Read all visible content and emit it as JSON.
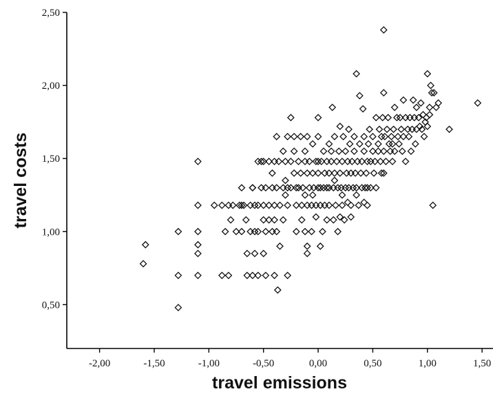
{
  "chart_data": {
    "type": "scatter",
    "title": "",
    "xlabel": "travel emissions",
    "ylabel": "travel costs",
    "xlim": [
      -2.3,
      1.6
    ],
    "ylim": [
      0.2,
      2.5
    ],
    "x_ticks": [
      -2.0,
      -1.5,
      -1.0,
      -0.5,
      0.0,
      0.5,
      1.0,
      1.5
    ],
    "x_tick_labels": [
      "-2,00",
      "-1,50",
      "-1,00",
      "-0,50",
      "0,00",
      "0,50",
      "1,00",
      "1,50"
    ],
    "y_ticks": [
      0.5,
      1.0,
      1.5,
      2.0,
      2.5
    ],
    "y_tick_labels": [
      "0,50",
      "1,00",
      "1,50",
      "2,00",
      "2,50"
    ],
    "grid": false,
    "marker": "diamond-outline",
    "points": [
      [
        -1.58,
        0.91
      ],
      [
        -1.6,
        0.78
      ],
      [
        -1.28,
        1.0
      ],
      [
        -1.28,
        0.7
      ],
      [
        -1.28,
        0.48
      ],
      [
        -1.1,
        1.48
      ],
      [
        -1.1,
        1.18
      ],
      [
        -1.1,
        1.0
      ],
      [
        -1.1,
        0.91
      ],
      [
        -1.1,
        0.85
      ],
      [
        -1.1,
        0.7
      ],
      [
        -0.95,
        1.18
      ],
      [
        -0.88,
        1.18
      ],
      [
        -0.85,
        1.0
      ],
      [
        -0.88,
        0.7
      ],
      [
        -0.82,
        0.7
      ],
      [
        -0.82,
        1.18
      ],
      [
        -0.8,
        1.08
      ],
      [
        -0.78,
        1.18
      ],
      [
        -0.75,
        1.0
      ],
      [
        -0.72,
        1.18
      ],
      [
        -0.7,
        1.3
      ],
      [
        -0.7,
        1.0
      ],
      [
        -0.68,
        1.18
      ],
      [
        -0.66,
        1.08
      ],
      [
        -0.65,
        0.85
      ],
      [
        -0.65,
        0.7
      ],
      [
        -0.62,
        1.18
      ],
      [
        -0.62,
        1.0
      ],
      [
        -0.6,
        1.3
      ],
      [
        -0.6,
        0.7
      ],
      [
        -0.58,
        1.18
      ],
      [
        -0.58,
        1.0
      ],
      [
        -0.58,
        0.85
      ],
      [
        -0.55,
        1.48
      ],
      [
        -0.55,
        1.18
      ],
      [
        -0.55,
        1.0
      ],
      [
        -0.55,
        0.7
      ],
      [
        -0.52,
        1.3
      ],
      [
        -0.52,
        1.48
      ],
      [
        -0.5,
        1.18
      ],
      [
        -0.5,
        1.08
      ],
      [
        -0.5,
        0.85
      ],
      [
        -0.5,
        1.48
      ],
      [
        -0.48,
        1.3
      ],
      [
        -0.48,
        1.0
      ],
      [
        -0.48,
        0.7
      ],
      [
        -0.45,
        1.48
      ],
      [
        -0.45,
        1.18
      ],
      [
        -0.45,
        1.08
      ],
      [
        -0.42,
        1.4
      ],
      [
        -0.42,
        1.3
      ],
      [
        -0.42,
        1.0
      ],
      [
        -0.4,
        1.48
      ],
      [
        -0.4,
        1.18
      ],
      [
        -0.4,
        1.08
      ],
      [
        -0.4,
        0.7
      ],
      [
        -0.38,
        1.65
      ],
      [
        -0.38,
        1.3
      ],
      [
        -0.38,
        1.0
      ],
      [
        -0.37,
        0.6
      ],
      [
        -0.36,
        1.48
      ],
      [
        -0.35,
        1.18
      ],
      [
        -0.35,
        0.9
      ],
      [
        -0.32,
        1.55
      ],
      [
        -0.32,
        1.3
      ],
      [
        -0.32,
        1.08
      ],
      [
        -0.3,
        1.48
      ],
      [
        -0.3,
        1.35
      ],
      [
        -0.28,
        1.65
      ],
      [
        -0.28,
        1.3
      ],
      [
        -0.28,
        1.18
      ],
      [
        -0.28,
        0.7
      ],
      [
        -0.25,
        1.78
      ],
      [
        -0.25,
        1.48
      ],
      [
        -0.25,
        1.3
      ],
      [
        -0.22,
        1.65
      ],
      [
        -0.22,
        1.55
      ],
      [
        -0.22,
        1.4
      ],
      [
        -0.2,
        1.3
      ],
      [
        -0.2,
        1.18
      ],
      [
        -0.2,
        1.0
      ],
      [
        -0.18,
        1.48
      ],
      [
        -0.18,
        1.3
      ],
      [
        -0.16,
        1.65
      ],
      [
        -0.16,
        1.4
      ],
      [
        -0.15,
        1.18
      ],
      [
        -0.15,
        1.08
      ],
      [
        -0.14,
        1.3
      ],
      [
        -0.12,
        1.48
      ],
      [
        -0.12,
        1.55
      ],
      [
        -0.12,
        1.0
      ],
      [
        -0.1,
        1.65
      ],
      [
        -0.1,
        1.4
      ],
      [
        -0.1,
        1.18
      ],
      [
        -0.1,
        0.9
      ],
      [
        -0.1,
        0.85
      ],
      [
        -0.08,
        1.3
      ],
      [
        -0.08,
        1.48
      ],
      [
        -0.06,
        1.18
      ],
      [
        -0.06,
        1.0
      ],
      [
        -0.05,
        1.6
      ],
      [
        -0.05,
        1.4
      ],
      [
        -0.04,
        1.3
      ],
      [
        -0.02,
        1.48
      ],
      [
        -0.02,
        1.18
      ],
      [
        -0.02,
        1.1
      ],
      [
        0.0,
        1.3
      ],
      [
        0.0,
        1.4
      ],
      [
        0.0,
        1.48
      ],
      [
        0.0,
        1.65
      ],
      [
        0.0,
        1.78
      ],
      [
        0.02,
        1.18
      ],
      [
        0.02,
        1.3
      ],
      [
        0.02,
        0.9
      ],
      [
        0.03,
        1.48
      ],
      [
        0.04,
        1.0
      ],
      [
        0.05,
        1.55
      ],
      [
        0.05,
        1.3
      ],
      [
        0.06,
        1.18
      ],
      [
        0.06,
        1.4
      ],
      [
        0.08,
        1.48
      ],
      [
        0.08,
        1.3
      ],
      [
        0.08,
        1.08
      ],
      [
        0.1,
        1.6
      ],
      [
        0.1,
        1.4
      ],
      [
        0.1,
        1.18
      ],
      [
        0.1,
        1.3
      ],
      [
        0.12,
        1.48
      ],
      [
        0.12,
        1.55
      ],
      [
        0.13,
        1.85
      ],
      [
        0.14,
        1.3
      ],
      [
        0.14,
        1.08
      ],
      [
        0.15,
        1.65
      ],
      [
        0.15,
        1.4
      ],
      [
        0.16,
        1.18
      ],
      [
        0.17,
        1.48
      ],
      [
        0.18,
        1.3
      ],
      [
        0.18,
        1.0
      ],
      [
        0.19,
        1.55
      ],
      [
        0.2,
        1.72
      ],
      [
        0.2,
        1.4
      ],
      [
        0.21,
        1.3
      ],
      [
        0.22,
        1.18
      ],
      [
        0.22,
        1.48
      ],
      [
        0.23,
        1.65
      ],
      [
        0.24,
        1.08
      ],
      [
        0.25,
        1.3
      ],
      [
        0.25,
        1.55
      ],
      [
        0.26,
        1.4
      ],
      [
        0.27,
        1.48
      ],
      [
        0.27,
        1.2
      ],
      [
        0.28,
        1.3
      ],
      [
        0.29,
        1.6
      ],
      [
        0.3,
        1.18
      ],
      [
        0.3,
        1.4
      ],
      [
        0.31,
        1.48
      ],
      [
        0.32,
        1.3
      ],
      [
        0.33,
        1.65
      ],
      [
        0.33,
        1.55
      ],
      [
        0.34,
        1.4
      ],
      [
        0.35,
        2.08
      ],
      [
        0.35,
        1.3
      ],
      [
        0.36,
        1.48
      ],
      [
        0.37,
        1.18
      ],
      [
        0.38,
        1.6
      ],
      [
        0.38,
        1.93
      ],
      [
        0.39,
        1.4
      ],
      [
        0.4,
        1.3
      ],
      [
        0.4,
        1.48
      ],
      [
        0.41,
        1.84
      ],
      [
        0.42,
        1.55
      ],
      [
        0.42,
        1.65
      ],
      [
        0.43,
        1.3
      ],
      [
        0.44,
        1.4
      ],
      [
        0.45,
        1.48
      ],
      [
        0.45,
        1.18
      ],
      [
        0.46,
        1.6
      ],
      [
        0.47,
        1.7
      ],
      [
        0.48,
        1.3
      ],
      [
        0.48,
        1.48
      ],
      [
        0.5,
        1.55
      ],
      [
        0.5,
        1.65
      ],
      [
        0.51,
        1.4
      ],
      [
        0.52,
        1.48
      ],
      [
        0.53,
        1.78
      ],
      [
        0.53,
        1.3
      ],
      [
        0.55,
        1.55
      ],
      [
        0.55,
        1.6
      ],
      [
        0.56,
        1.7
      ],
      [
        0.57,
        1.48
      ],
      [
        0.58,
        1.65
      ],
      [
        0.58,
        1.4
      ],
      [
        0.59,
        1.78
      ],
      [
        0.6,
        2.38
      ],
      [
        0.6,
        1.95
      ],
      [
        0.6,
        1.55
      ],
      [
        0.61,
        1.65
      ],
      [
        0.62,
        1.48
      ],
      [
        0.63,
        1.7
      ],
      [
        0.64,
        1.78
      ],
      [
        0.65,
        1.6
      ],
      [
        0.66,
        1.55
      ],
      [
        0.67,
        1.65
      ],
      [
        0.68,
        1.48
      ],
      [
        0.69,
        1.7
      ],
      [
        0.7,
        1.85
      ],
      [
        0.7,
        1.55
      ],
      [
        0.72,
        1.78
      ],
      [
        0.73,
        1.65
      ],
      [
        0.74,
        1.6
      ],
      [
        0.75,
        1.78
      ],
      [
        0.76,
        1.7
      ],
      [
        0.77,
        1.55
      ],
      [
        0.78,
        1.9
      ],
      [
        0.78,
        1.65
      ],
      [
        0.8,
        1.78
      ],
      [
        0.8,
        1.48
      ],
      [
        0.82,
        1.7
      ],
      [
        0.83,
        1.65
      ],
      [
        0.84,
        1.78
      ],
      [
        0.85,
        1.55
      ],
      [
        0.86,
        1.7
      ],
      [
        0.87,
        1.9
      ],
      [
        0.88,
        1.78
      ],
      [
        0.89,
        1.6
      ],
      [
        0.9,
        1.85
      ],
      [
        0.9,
        1.7
      ],
      [
        0.92,
        1.78
      ],
      [
        0.93,
        1.72
      ],
      [
        0.94,
        1.88
      ],
      [
        0.95,
        1.7
      ],
      [
        0.96,
        1.8
      ],
      [
        0.97,
        1.65
      ],
      [
        0.98,
        1.75
      ],
      [
        0.99,
        1.78
      ],
      [
        1.0,
        2.08
      ],
      [
        1.0,
        1.72
      ],
      [
        1.02,
        1.85
      ],
      [
        1.02,
        1.8
      ],
      [
        1.03,
        2.0
      ],
      [
        1.04,
        1.95
      ],
      [
        1.05,
        1.18
      ],
      [
        1.06,
        1.95
      ],
      [
        1.08,
        1.85
      ],
      [
        1.1,
        1.88
      ],
      [
        1.2,
        1.7
      ],
      [
        1.46,
        1.88
      ],
      [
        0.3,
        1.1
      ],
      [
        0.2,
        1.1
      ],
      [
        -0.3,
        1.25
      ],
      [
        -0.6,
        1.3
      ],
      [
        -0.7,
        1.18
      ],
      [
        0.35,
        1.25
      ],
      [
        0.42,
        1.2
      ],
      [
        0.45,
        1.3
      ],
      [
        0.28,
        1.7
      ],
      [
        0.15,
        1.35
      ],
      [
        -0.12,
        1.25
      ],
      [
        -0.05,
        1.25
      ],
      [
        0.6,
        1.4
      ],
      [
        0.68,
        1.6
      ],
      [
        0.22,
        1.25
      ]
    ]
  }
}
